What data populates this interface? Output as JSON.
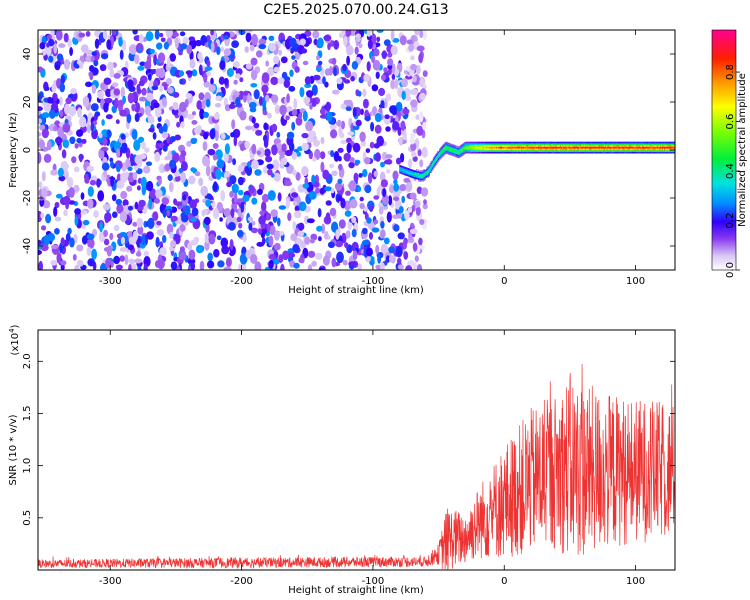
{
  "title": "C2E5.2025.070.00.24.G13",
  "chart_data": [
    {
      "type": "heatmap",
      "xlabel": "Height of straight line (km)",
      "ylabel": "Frequency (Hz)",
      "xlim": [
        -355,
        130
      ],
      "ylim": [
        -50,
        50
      ],
      "xticks": [
        -300,
        -200,
        -100,
        0,
        100
      ],
      "yticks": [
        -40,
        -20,
        0,
        20,
        40
      ],
      "colorbar": {
        "label": "Normalized spectral amplitude",
        "ticks": [
          0.0,
          0.2,
          0.4,
          0.6,
          0.8
        ],
        "range": [
          0,
          0.97
        ]
      },
      "noise_region_x": [
        -355,
        -60
      ],
      "noise_amplitude_range": [
        0.05,
        0.3
      ],
      "trace": {
        "x": [
          -80,
          -70,
          -63,
          -58,
          -55,
          -50,
          -45,
          -40,
          -35,
          -30,
          -20,
          -10,
          0,
          20,
          40,
          60,
          80,
          100,
          120,
          130
        ],
        "frequency_hz": [
          -8,
          -10,
          -11,
          -9,
          -6,
          -2,
          1,
          0,
          -1,
          1,
          1,
          1,
          1,
          1,
          1,
          1,
          1,
          1,
          1,
          1
        ],
        "amplitude": [
          0.35,
          0.4,
          0.45,
          0.45,
          0.45,
          0.45,
          0.55,
          0.5,
          0.5,
          0.6,
          0.75,
          0.85,
          0.9,
          0.95,
          0.95,
          0.95,
          0.95,
          0.95,
          0.95,
          0.95
        ]
      }
    },
    {
      "type": "line",
      "xlabel": "Height of straight line (km)",
      "ylabel": "SNR (10 * v/v)",
      "y_multiplier": "(x10",
      "y_multiplier_exp": "4",
      "y_multiplier_close": ")",
      "xlim": [
        -355,
        130
      ],
      "ylim": [
        0,
        23000
      ],
      "xticks": [
        -300,
        -200,
        -100,
        0,
        100
      ],
      "yticks": [
        5000,
        10000,
        15000,
        20000
      ],
      "ytick_labels": [
        "0.5",
        "1.0",
        "1.5",
        "2.0"
      ],
      "color": "#ee3333",
      "envelope": {
        "x": [
          -355,
          -200,
          -60,
          -50,
          -45,
          -40,
          -30,
          -20,
          -10,
          0,
          20,
          40,
          50,
          60,
          80,
          100,
          130
        ],
        "mean": [
          600,
          700,
          800,
          1500,
          2500,
          3000,
          3000,
          4500,
          5500,
          6500,
          8500,
          9500,
          10000,
          9500,
          9500,
          9500,
          9500
        ],
        "spread": [
          400,
          500,
          500,
          1000,
          3000,
          3000,
          2500,
          3500,
          4500,
          5500,
          7000,
          7500,
          9000,
          8500,
          7500,
          7000,
          6500
        ]
      }
    }
  ]
}
